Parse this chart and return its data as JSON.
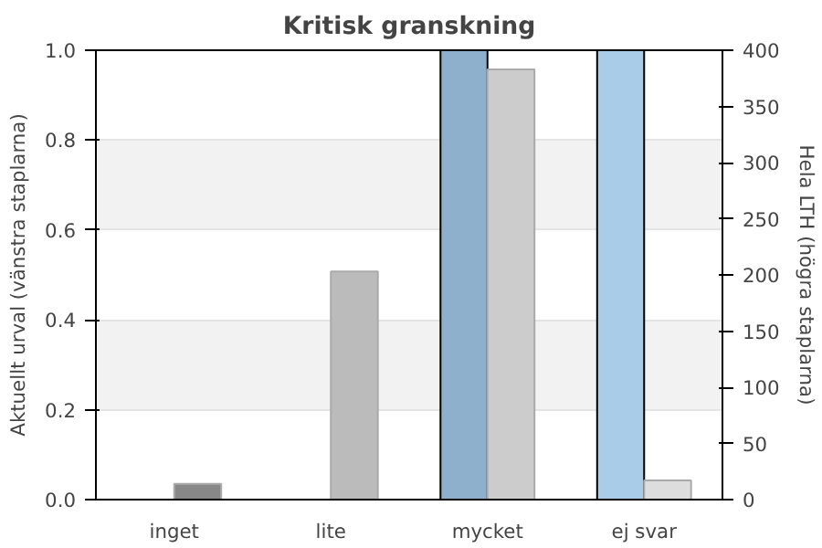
{
  "chart_data": {
    "type": "bar",
    "title": "Kritisk granskning",
    "categories": [
      "inget",
      "lite",
      "mycket",
      "ej svar"
    ],
    "ylabel": "Aktuellt urval (vänstra staplarna)",
    "y2label": "Hela LTH (högra staplarna)",
    "ylim": [
      0,
      1
    ],
    "yticks": [
      {
        "value": 0,
        "label": "0.0"
      },
      0.2,
      0.4,
      0.6,
      0.8,
      {
        "value": 1,
        "label": "1.0"
      }
    ],
    "y2lim": [
      0,
      400
    ],
    "y2ticks": [
      0,
      50,
      100,
      150,
      200,
      250,
      300,
      350,
      400
    ],
    "grid": "y",
    "series": [
      {
        "colors": [
          "#8fb0cc",
          "#8fb0cc",
          "#8fb0cc",
          "#a9cde9"
        ],
        "values": [
          null,
          null,
          1,
          1
        ]
      },
      {
        "axis": "y2",
        "colors": [
          "#888888",
          "#bbbbbb",
          "#cccccc",
          "#dddddd"
        ],
        "values": [
          14,
          203,
          383,
          17
        ]
      }
    ]
  }
}
